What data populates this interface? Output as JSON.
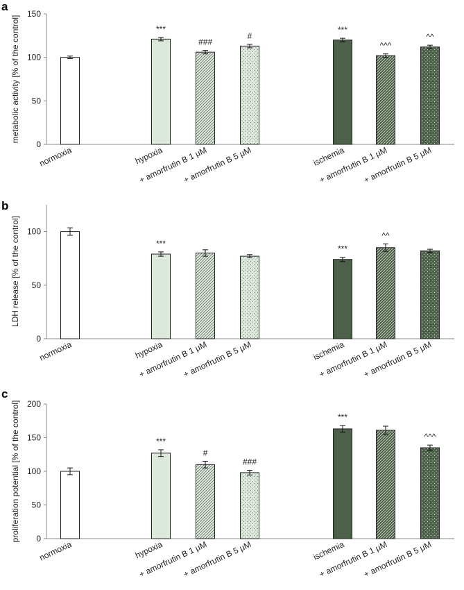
{
  "colors": {
    "white": "#ffffff",
    "light": "#dde8dc",
    "dark": "#4d6049",
    "stroke": "#222222"
  },
  "chart_data": [
    {
      "type": "bar",
      "panel": "a",
      "ylabel": "metabolic activity [% of the control]",
      "ylim": [
        0,
        150
      ],
      "yticks": [
        0,
        50,
        100,
        150
      ],
      "categories": [
        "normoxia",
        "hypoxia",
        "+ amorfrutin B 1 μM",
        "+ amorfrutin B 5 μM",
        "ischemia",
        "+ amorfrutin B 1 μM",
        "+ amorfrutin B 5 μM"
      ],
      "values": [
        100,
        121,
        106,
        113,
        120,
        102,
        112
      ],
      "errors": [
        1.5,
        2,
        2,
        2,
        2,
        2,
        2
      ],
      "significance": [
        "",
        "***",
        "###",
        "#",
        "***",
        "^^^",
        "^^"
      ],
      "fills": [
        "white",
        "light",
        "light",
        "light",
        "dark",
        "dark",
        "dark"
      ],
      "patterns": [
        "none",
        "none",
        "hatch",
        "dots",
        "none",
        "hatch",
        "dots"
      ]
    },
    {
      "type": "bar",
      "panel": "b",
      "ylabel": "LDH release [% of the control]",
      "ylim": [
        0,
        125
      ],
      "yticks": [
        0,
        50,
        100
      ],
      "categories": [
        "normoxia",
        "hypoxia",
        "+ amorfrutin B 1 μM",
        "+ amorfrutin B 5 μM",
        "ischemia",
        "+ amorfrutin B 1 μM",
        "+ amorfrutin B 5 μM"
      ],
      "values": [
        100,
        79,
        80,
        77,
        74,
        85,
        82
      ],
      "errors": [
        3.5,
        2,
        3,
        1.5,
        2,
        3.5,
        1.5
      ],
      "significance": [
        "",
        "***",
        "",
        "",
        "***",
        "^^",
        ""
      ],
      "fills": [
        "white",
        "light",
        "light",
        "light",
        "dark",
        "dark",
        "dark"
      ],
      "patterns": [
        "none",
        "none",
        "hatch",
        "dots",
        "none",
        "hatch",
        "dots"
      ]
    },
    {
      "type": "bar",
      "panel": "c",
      "ylabel": "proliferation potential [% of the control]",
      "ylim": [
        0,
        200
      ],
      "yticks": [
        0,
        50,
        100,
        150,
        200
      ],
      "categories": [
        "normoxia",
        "hypoxia",
        "+ amorfrutin B 1 μM",
        "+ amorfrutin B 5 μM",
        "ischemia",
        "+ amorfrutin B 1 μM",
        "+ amorfrutin B 5 μM"
      ],
      "values": [
        100,
        127,
        110,
        98,
        163,
        161,
        135
      ],
      "errors": [
        5,
        5,
        5,
        3.5,
        5,
        6,
        4
      ],
      "significance": [
        "",
        "***",
        "#",
        "###",
        "***",
        "",
        "^^^"
      ],
      "fills": [
        "white",
        "light",
        "light",
        "light",
        "dark",
        "dark",
        "dark"
      ],
      "patterns": [
        "none",
        "none",
        "hatch",
        "dots",
        "none",
        "hatch",
        "dots"
      ]
    }
  ]
}
